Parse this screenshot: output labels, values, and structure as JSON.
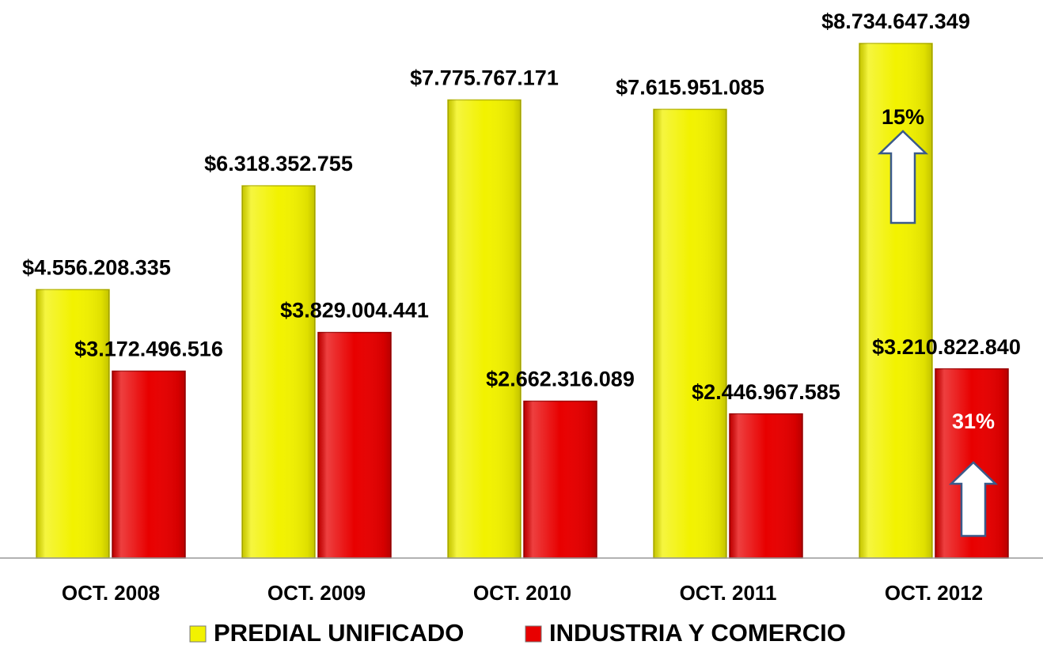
{
  "chart_data": {
    "type": "bar",
    "categories": [
      "OCT. 2008",
      "OCT. 2009",
      "OCT. 2010",
      "OCT. 2011",
      "OCT. 2012"
    ],
    "series": [
      {
        "name": "PREDIAL UNIFICADO",
        "color": "#f2f200",
        "values": [
          4556208335,
          6318352755,
          7775767171,
          7615951085,
          8734647349
        ],
        "value_labels": [
          "$4.556.208.335",
          "$6.318.352.755",
          "$7.775.767.171",
          "$7.615.951.085",
          "$8.734.647.349"
        ]
      },
      {
        "name": "INDUSTRIA Y COMERCIO",
        "color": "#e80000",
        "values": [
          3172496516,
          3829004441,
          2662316089,
          2446967585,
          3210822840
        ],
        "value_labels": [
          "$3.172.496.516",
          "$3.829.004.441",
          "$2.662.316.089",
          "$2.446.967.585",
          "$3.210.822.840"
        ]
      }
    ],
    "annotations": [
      "15%",
      "31%"
    ]
  }
}
